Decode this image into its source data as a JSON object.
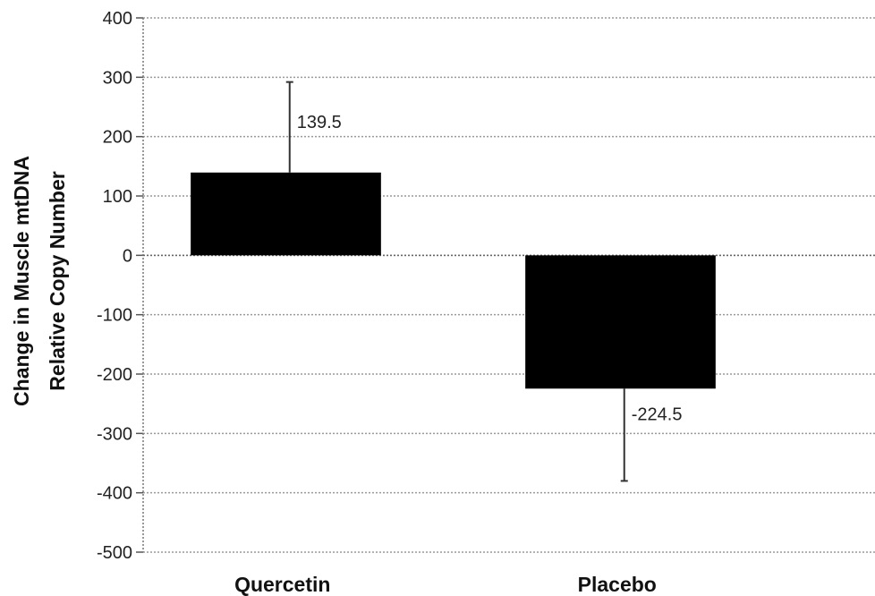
{
  "chart_data": {
    "type": "bar",
    "categories": [
      "Quercetin",
      "Placebo"
    ],
    "values": [
      139.5,
      -224.5
    ],
    "error_bars": [
      {
        "upper": 292,
        "lower": 139.5
      },
      {
        "upper": -224.5,
        "lower": -380
      }
    ],
    "data_labels": [
      "139.5",
      "-224.5"
    ],
    "ylabel_lines": [
      "Change in Muscle mtDNA",
      "Relative Copy Number"
    ],
    "xlabel": "",
    "title": "",
    "ylim": [
      -500,
      400
    ],
    "yticks": [
      400,
      300,
      200,
      100,
      0,
      -100,
      -200,
      -300,
      -400,
      -500
    ],
    "ytick_labels": [
      "400",
      "300",
      "200",
      "100",
      "0",
      "-100",
      "-200",
      "-300",
      "-400",
      "-500"
    ],
    "grid": true,
    "legend": "none",
    "colors": {
      "bar": "#000000",
      "grid": "#9a9a9a",
      "text": "#222222"
    }
  }
}
